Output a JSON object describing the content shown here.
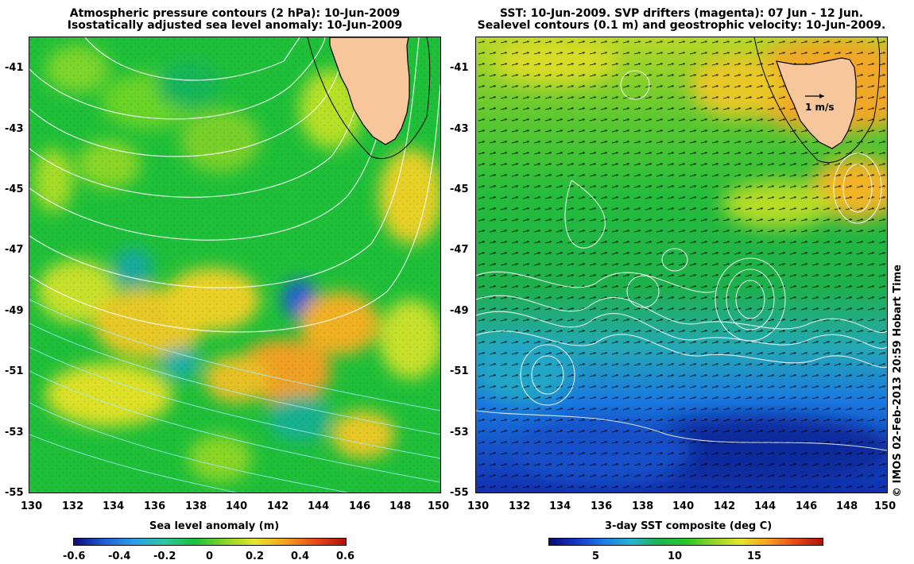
{
  "left_panel": {
    "title_line1": "Atmospheric pressure contours (2 hPa): 10-Jun-2009",
    "title_line2": "Isostatically adjusted sea level anomaly: 10-Jun-2009",
    "y_ticks": [
      "-41",
      "-43",
      "-45",
      "-47",
      "-49",
      "-51",
      "-53",
      "-55"
    ],
    "x_ticks": [
      "130",
      "132",
      "134",
      "136",
      "138",
      "140",
      "142",
      "144",
      "146",
      "148",
      "150"
    ],
    "colorbar_title": "Sea level anomaly (m)",
    "colorbar_ticks": [
      "-0.6",
      "-0.4",
      "-0.2",
      "0",
      "0.2",
      "0.4",
      "0.6"
    ],
    "colorbar_colors": [
      "#0a0a78",
      "#1f5fd6",
      "#2aa0e8",
      "#2cc8a0",
      "#17c23c",
      "#8ad628",
      "#e6e628",
      "#f5a020",
      "#e84a14",
      "#b01010"
    ]
  },
  "right_panel": {
    "title_line1": "SST: 10-Jun-2009. SVP drifters (magenta): 07 Jun - 12 Jun.",
    "title_line2": "Sealevel contours (0.1 m) and geostrophic velocity: 10-Jun-2009.",
    "y_ticks": [
      "-41",
      "-43",
      "-45",
      "-47",
      "-49",
      "-51",
      "-53",
      "-55"
    ],
    "x_ticks": [
      "130",
      "132",
      "134",
      "136",
      "138",
      "140",
      "142",
      "144",
      "146",
      "148",
      "150"
    ],
    "scale_label": "1 m/s",
    "colorbar_title": "3-day SST composite (deg C)",
    "colorbar_ticks": [
      "5",
      "10",
      "15"
    ],
    "colorbar_colors": [
      "#0a0a78",
      "#1438c8",
      "#1e7ee6",
      "#26b4d2",
      "#1eb450",
      "#26c828",
      "#96d228",
      "#e6e628",
      "#f5a020",
      "#e84a14",
      "#b01010"
    ]
  },
  "credit": "© IMOS 02-Feb-2013 20:59 Hobart Time",
  "colors": {
    "land": "#f7c79b",
    "coast": "#000000",
    "contour": "#ffffff"
  }
}
